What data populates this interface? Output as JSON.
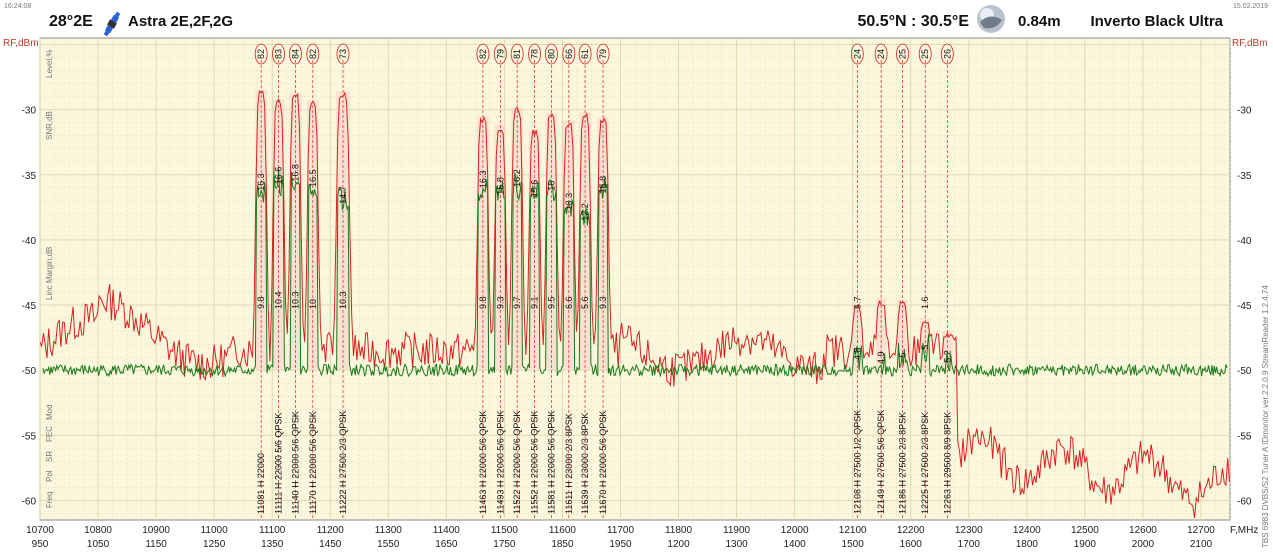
{
  "header": {
    "time": "16:24:08",
    "date": "15.02.2019",
    "satellite_position": "28°2E",
    "satellite_name": "Astra 2E,2F,2G",
    "location": "50.5°N : 30.5°E",
    "dish": "0.84m",
    "lnb": "Inverto Black Ultra"
  },
  "side_labels": {
    "rf_left": "RF,dBm",
    "rf_right": "RF,dBm",
    "level": "Level,%",
    "snr": "SNR,dB",
    "margin": "Linc Margin,dB",
    "mod": "Mod",
    "fec": "FEC",
    "sr": "SR",
    "pol": "Pol",
    "freq": "Freq",
    "f_unit": "F,MHz",
    "software": "TBS 6983 DVBS/S2 Tuner A   IDmonitor  ver.2.2.0.9  StreamReader 1.2.4.74"
  },
  "colors": {
    "background": "#faf7dc",
    "grid": "#dcd7ae",
    "spectrum": "#d92020",
    "snr": "#1a7a1a",
    "band_fill": "#f6d2c8"
  },
  "chart_data": {
    "type": "line",
    "xlabel": "F,MHz",
    "ylabel": "RF,dBm",
    "xlim": [
      10700,
      12750
    ],
    "ylim": [
      -61.5,
      -24.5
    ],
    "x_ticks": [
      10700,
      10800,
      10900,
      11000,
      11100,
      11200,
      11300,
      11400,
      11500,
      11600,
      11700,
      11800,
      11900,
      12000,
      12100,
      12200,
      12300,
      12400,
      12500,
      12600,
      12700
    ],
    "if_ticks": [
      "950",
      "1050",
      "1150",
      "1250",
      "1350",
      "1450",
      "1550",
      "1650",
      "1750",
      "1850",
      "1950",
      "1200",
      "1300",
      "1400",
      "1500",
      "1600",
      "1700",
      "1800",
      "1900",
      "2000",
      "2100"
    ],
    "y_ticks": [
      -30,
      -35,
      -40,
      -45,
      -50,
      -55,
      -60
    ],
    "grid": true,
    "transponders": [
      {
        "freq": 11081,
        "pol": "H",
        "sr": 22000,
        "fec": "",
        "mod": "",
        "level": 82,
        "snr": 16.3,
        "margin": 9.8,
        "rf": -28.5,
        "snr_dbm": -35.0,
        "width": 20
      },
      {
        "freq": 11111,
        "pol": "H",
        "sr": 22000,
        "fec": "5/6",
        "mod": "QPSK",
        "level": 83,
        "snr": 16.6,
        "margin": 10.4,
        "rf": -29.2,
        "snr_dbm": -34.5,
        "width": 20
      },
      {
        "freq": 11140,
        "pol": "H",
        "sr": 22000,
        "fec": "5/6",
        "mod": "QPSK",
        "level": 84,
        "snr": 16.8,
        "margin": 10.3,
        "rf": -28.7,
        "snr_dbm": -34.3,
        "width": 20
      },
      {
        "freq": 11170,
        "pol": "H",
        "sr": 22000,
        "fec": "5/6",
        "mod": "QPSK",
        "level": 82,
        "snr": 16.5,
        "margin": 10,
        "rf": -29.3,
        "snr_dbm": -34.7,
        "width": 20
      },
      {
        "freq": 11222,
        "pol": "H",
        "sr": 27500,
        "fec": "2/3",
        "mod": "QPSK",
        "level": 73,
        "snr": 14.7,
        "margin": 10.3,
        "rf": -28.6,
        "snr_dbm": -36.0,
        "width": 24
      },
      {
        "freq": 11463,
        "pol": "H",
        "sr": 22000,
        "fec": "5/6",
        "mod": "QPSK",
        "level": 82,
        "snr": 16.3,
        "margin": 9.8,
        "rf": -30.5,
        "snr_dbm": -34.8,
        "width": 20
      },
      {
        "freq": 11493,
        "pol": "H",
        "sr": 22000,
        "fec": "5/6",
        "mod": "QPSK",
        "level": 79,
        "snr": 15.8,
        "margin": 9.3,
        "rf": -31.2,
        "snr_dbm": -35.3,
        "width": 20
      },
      {
        "freq": 11522,
        "pol": "H",
        "sr": 22000,
        "fec": "5/6",
        "mod": "QPSK",
        "level": 81,
        "snr": 16.2,
        "margin": 9.7,
        "rf": -29.8,
        "snr_dbm": -34.7,
        "width": 20
      },
      {
        "freq": 11552,
        "pol": "H",
        "sr": 22000,
        "fec": "5/6",
        "mod": "QPSK",
        "level": 78,
        "snr": 15.6,
        "margin": 9.1,
        "rf": -31.5,
        "snr_dbm": -35.5,
        "width": 20
      },
      {
        "freq": 11581,
        "pol": "H",
        "sr": 22000,
        "fec": "5/6",
        "mod": "QPSK",
        "level": 80,
        "snr": 16,
        "margin": 9.5,
        "rf": -30.3,
        "snr_dbm": -35.0,
        "width": 20
      },
      {
        "freq": 11611,
        "pol": "H",
        "sr": 23000,
        "fec": "2/3",
        "mod": "8PSK",
        "level": 66,
        "snr": 13.3,
        "margin": 6.6,
        "rf": -30.8,
        "snr_dbm": -36.5,
        "width": 20
      },
      {
        "freq": 11639,
        "pol": "H",
        "sr": 23000,
        "fec": "2/3",
        "mod": "8PSK",
        "level": 61,
        "snr": 12.2,
        "margin": 5.6,
        "rf": -30.2,
        "snr_dbm": -37.3,
        "width": 20
      },
      {
        "freq": 11670,
        "pol": "H",
        "sr": 22000,
        "fec": "5/6",
        "mod": "QPSK",
        "level": 79,
        "snr": 15.8,
        "margin": 9.3,
        "rf": -30.6,
        "snr_dbm": -35.2,
        "width": 20
      },
      {
        "freq": 12108,
        "pol": "H",
        "sr": 27500,
        "fec": "1/2",
        "mod": "QPSK",
        "level": 24,
        "snr": 4.8,
        "margin": 6.7,
        "rf": -45.0,
        "snr_dbm": -48.0,
        "width": 18
      },
      {
        "freq": 12149,
        "pol": "H",
        "sr": 27500,
        "fec": "5/6",
        "mod": "QPSK",
        "level": 24,
        "snr": 4.9,
        "margin": "",
        "rf": -44.5,
        "snr_dbm": -48.3,
        "width": 18
      },
      {
        "freq": 12186,
        "pol": "H",
        "sr": 27500,
        "fec": "2/3",
        "mod": "8PSK",
        "level": 25,
        "snr": 5,
        "margin": "",
        "rf": -44.6,
        "snr_dbm": -47.8,
        "width": 18
      },
      {
        "freq": 12225,
        "pol": "H",
        "sr": 27500,
        "fec": "2/3",
        "mod": "8PSK",
        "level": 25,
        "snr": 5,
        "margin": 1.6,
        "rf": -46.0,
        "snr_dbm": -47.2,
        "width": 18
      },
      {
        "freq": 12263,
        "pol": "H",
        "sr": 29500,
        "fec": "8/9",
        "mod": "8PSK",
        "level": 26,
        "snr": 5.2,
        "margin": "",
        "rf": -47.0,
        "snr_dbm": -48.2,
        "width": 18
      }
    ]
  }
}
